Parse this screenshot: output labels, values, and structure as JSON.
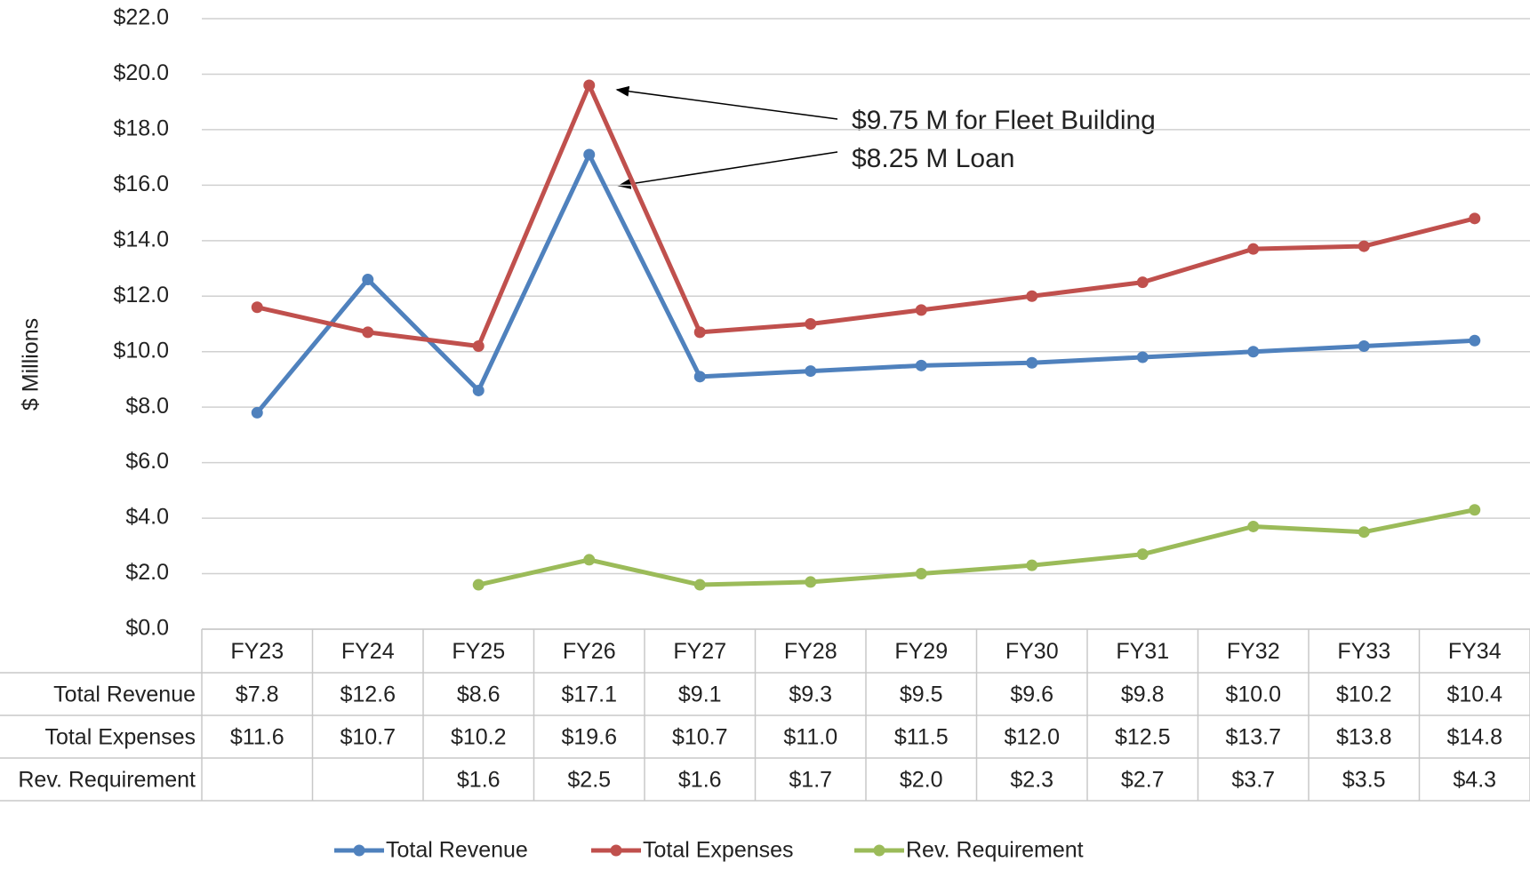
{
  "chart_data": {
    "type": "line",
    "y_label": "$ Millions",
    "categories": [
      "FY23",
      "FY24",
      "FY25",
      "FY26",
      "FY27",
      "FY28",
      "FY29",
      "FY30",
      "FY31",
      "FY32",
      "FY33",
      "FY34"
    ],
    "series": [
      {
        "name": "Total Revenue",
        "color": "#4f81bd",
        "values": [
          7.8,
          12.6,
          8.6,
          17.1,
          9.1,
          9.3,
          9.5,
          9.6,
          9.8,
          10.0,
          10.2,
          10.4
        ],
        "value_labels": [
          "$7.8",
          "$12.6",
          "$8.6",
          "$17.1",
          "$9.1",
          "$9.3",
          "$9.5",
          "$9.6",
          "$9.8",
          "$10.0",
          "$10.2",
          "$10.4"
        ]
      },
      {
        "name": "Total Expenses",
        "color": "#c0504d",
        "values": [
          11.6,
          10.7,
          10.2,
          19.6,
          10.7,
          11.0,
          11.5,
          12.0,
          12.5,
          13.7,
          13.8,
          14.8
        ],
        "value_labels": [
          "$11.6",
          "$10.7",
          "$10.2",
          "$19.6",
          "$10.7",
          "$11.0",
          "$11.5",
          "$12.0",
          "$12.5",
          "$13.7",
          "$13.8",
          "$14.8"
        ]
      },
      {
        "name": "Rev. Requirement",
        "color": "#9bbb59",
        "values": [
          null,
          null,
          1.6,
          2.5,
          1.6,
          1.7,
          2.0,
          2.3,
          2.7,
          3.7,
          3.5,
          4.3
        ],
        "value_labels": [
          null,
          null,
          "$1.6",
          "$2.5",
          "$1.6",
          "$1.7",
          "$2.0",
          "$2.3",
          "$2.7",
          "$3.7",
          "$3.5",
          "$4.3"
        ]
      }
    ],
    "ylim": [
      0,
      22
    ],
    "yticks": [
      {
        "value": 0,
        "label": "$0.0"
      },
      {
        "value": 2,
        "label": "$2.0"
      },
      {
        "value": 4,
        "label": "$4.0"
      },
      {
        "value": 6,
        "label": "$6.0"
      },
      {
        "value": 8,
        "label": "$8.0"
      },
      {
        "value": 10,
        "label": "$10.0"
      },
      {
        "value": 12,
        "label": "$12.0"
      },
      {
        "value": 14,
        "label": "$14.0"
      },
      {
        "value": 16,
        "label": "$16.0"
      },
      {
        "value": 18,
        "label": "$18.0"
      },
      {
        "value": 20,
        "label": "$20.0"
      },
      {
        "value": 22,
        "label": "$22.0"
      }
    ],
    "grid": true,
    "annotations": [
      "$9.75 M for Fleet Building",
      "$8.25 M Loan"
    ],
    "legend": "bottom"
  }
}
